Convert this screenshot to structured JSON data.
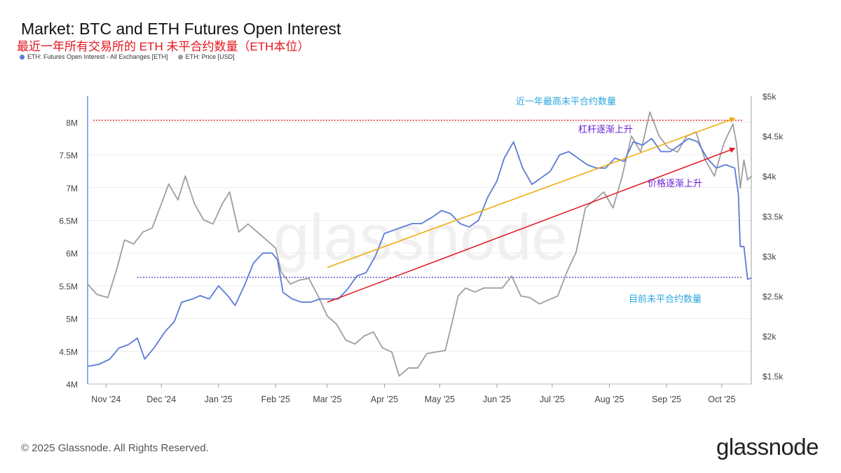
{
  "header": {
    "title": "Market: BTC and ETH Futures Open Interest",
    "subtitle": "最近一年所有交易所的 ETH 未平合约数量（ETH本位）"
  },
  "legend": [
    {
      "label": "ETH: Futures Open Interest - All Exchanges [ETH]",
      "color": "#5b7bd5"
    },
    {
      "label": "ETH: Price [USD]",
      "color": "#9e9e9e"
    }
  ],
  "footer": {
    "copyright": "© 2025 Glassnode. All Rights Reserved.",
    "logo": "glassnode"
  },
  "watermark": "glassnode",
  "chart_data": {
    "type": "line",
    "x_axis": {
      "start": "2024-10-22",
      "end": "2025-10-17",
      "ticks": [
        {
          "date": "2024-11-01",
          "label": "Nov '24"
        },
        {
          "date": "2024-12-01",
          "label": "Dec '24"
        },
        {
          "date": "2025-01-01",
          "label": "Jan '25"
        },
        {
          "date": "2025-02-01",
          "label": "Feb '25"
        },
        {
          "date": "2025-03-01",
          "label": "Mar '25"
        },
        {
          "date": "2025-04-01",
          "label": "Apr '25"
        },
        {
          "date": "2025-05-01",
          "label": "May '25"
        },
        {
          "date": "2025-06-01",
          "label": "Jun '25"
        },
        {
          "date": "2025-07-01",
          "label": "Jul '25"
        },
        {
          "date": "2025-08-01",
          "label": "Aug '25"
        },
        {
          "date": "2025-09-01",
          "label": "Sep '25"
        },
        {
          "date": "2025-10-01",
          "label": "Oct '25"
        }
      ]
    },
    "y_left": {
      "min": 4000000,
      "max": 8400000,
      "ticks": [
        {
          "value": 4000000,
          "label": "4M"
        },
        {
          "value": 4500000,
          "label": "4.5M"
        },
        {
          "value": 5000000,
          "label": "5M"
        },
        {
          "value": 5500000,
          "label": "5.5M"
        },
        {
          "value": 6000000,
          "label": "6M"
        },
        {
          "value": 6500000,
          "label": "6.5M"
        },
        {
          "value": 7000000,
          "label": "7M"
        },
        {
          "value": 7500000,
          "label": "7.5M"
        },
        {
          "value": 8000000,
          "label": "8M"
        }
      ]
    },
    "y_right": {
      "min": 1400,
      "max": 5000,
      "ticks": [
        {
          "value": 1500,
          "label": "$1.5k"
        },
        {
          "value": 2000,
          "label": "$2k"
        },
        {
          "value": 2500,
          "label": "$2.5k"
        },
        {
          "value": 3000,
          "label": "$3k"
        },
        {
          "value": 3500,
          "label": "$3.5k"
        },
        {
          "value": 4000,
          "label": "$4k"
        },
        {
          "value": 4500,
          "label": "$4.5k"
        },
        {
          "value": 5000,
          "label": "$5k"
        }
      ]
    },
    "series": [
      {
        "name": "ETH: Futures Open Interest - All Exchanges [ETH]",
        "axis": "left",
        "color": "#5b7bd5",
        "points": [
          [
            "2024-10-22",
            4270000
          ],
          [
            "2024-10-28",
            4300000
          ],
          [
            "2024-11-03",
            4380000
          ],
          [
            "2024-11-08",
            4550000
          ],
          [
            "2024-11-13",
            4600000
          ],
          [
            "2024-11-18",
            4700000
          ],
          [
            "2024-11-22",
            4380000
          ],
          [
            "2024-11-27",
            4550000
          ],
          [
            "2024-12-03",
            4800000
          ],
          [
            "2024-12-08",
            4950000
          ],
          [
            "2024-12-12",
            5250000
          ],
          [
            "2024-12-18",
            5300000
          ],
          [
            "2024-12-22",
            5350000
          ],
          [
            "2024-12-27",
            5300000
          ],
          [
            "2025-01-01",
            5500000
          ],
          [
            "2025-01-06",
            5350000
          ],
          [
            "2025-01-10",
            5200000
          ],
          [
            "2025-01-15",
            5500000
          ],
          [
            "2025-01-20",
            5850000
          ],
          [
            "2025-01-25",
            6000000
          ],
          [
            "2025-01-30",
            6000000
          ],
          [
            "2025-02-02",
            5900000
          ],
          [
            "2025-02-05",
            5400000
          ],
          [
            "2025-02-10",
            5300000
          ],
          [
            "2025-02-15",
            5250000
          ],
          [
            "2025-02-20",
            5250000
          ],
          [
            "2025-02-25",
            5300000
          ],
          [
            "2025-03-02",
            5300000
          ],
          [
            "2025-03-07",
            5300000
          ],
          [
            "2025-03-12",
            5450000
          ],
          [
            "2025-03-17",
            5650000
          ],
          [
            "2025-03-22",
            5700000
          ],
          [
            "2025-03-27",
            5950000
          ],
          [
            "2025-04-01",
            6300000
          ],
          [
            "2025-04-06",
            6350000
          ],
          [
            "2025-04-11",
            6400000
          ],
          [
            "2025-04-16",
            6450000
          ],
          [
            "2025-04-21",
            6450000
          ],
          [
            "2025-04-27",
            6550000
          ],
          [
            "2025-05-02",
            6650000
          ],
          [
            "2025-05-07",
            6600000
          ],
          [
            "2025-05-12",
            6450000
          ],
          [
            "2025-05-17",
            6400000
          ],
          [
            "2025-05-22",
            6500000
          ],
          [
            "2025-05-27",
            6850000
          ],
          [
            "2025-06-01",
            7100000
          ],
          [
            "2025-06-05",
            7450000
          ],
          [
            "2025-06-10",
            7700000
          ],
          [
            "2025-06-15",
            7300000
          ],
          [
            "2025-06-20",
            7050000
          ],
          [
            "2025-06-25",
            7150000
          ],
          [
            "2025-06-30",
            7250000
          ],
          [
            "2025-07-05",
            7500000
          ],
          [
            "2025-07-10",
            7550000
          ],
          [
            "2025-07-15",
            7450000
          ],
          [
            "2025-07-20",
            7350000
          ],
          [
            "2025-07-25",
            7300000
          ],
          [
            "2025-07-30",
            7300000
          ],
          [
            "2025-08-04",
            7450000
          ],
          [
            "2025-08-09",
            7400000
          ],
          [
            "2025-08-14",
            7700000
          ],
          [
            "2025-08-19",
            7650000
          ],
          [
            "2025-08-24",
            7750000
          ],
          [
            "2025-08-29",
            7550000
          ],
          [
            "2025-09-03",
            7550000
          ],
          [
            "2025-09-08",
            7650000
          ],
          [
            "2025-09-13",
            7750000
          ],
          [
            "2025-09-18",
            7700000
          ],
          [
            "2025-09-23",
            7450000
          ],
          [
            "2025-09-28",
            7300000
          ],
          [
            "2025-10-03",
            7350000
          ],
          [
            "2025-10-08",
            7300000
          ],
          [
            "2025-10-10",
            6900000
          ],
          [
            "2025-10-11",
            6100000
          ],
          [
            "2025-10-13",
            6100000
          ],
          [
            "2025-10-15",
            5600000
          ],
          [
            "2025-10-17",
            5620000
          ]
        ]
      },
      {
        "name": "ETH: Price [USD]",
        "axis": "right",
        "color": "#9e9e9e",
        "points": [
          [
            "2024-10-22",
            2650
          ],
          [
            "2024-10-27",
            2520
          ],
          [
            "2024-11-02",
            2480
          ],
          [
            "2024-11-07",
            2850
          ],
          [
            "2024-11-11",
            3200
          ],
          [
            "2024-11-16",
            3150
          ],
          [
            "2024-11-21",
            3300
          ],
          [
            "2024-11-26",
            3350
          ],
          [
            "2024-12-01",
            3650
          ],
          [
            "2024-12-05",
            3900
          ],
          [
            "2024-12-10",
            3700
          ],
          [
            "2024-12-14",
            4000
          ],
          [
            "2024-12-19",
            3650
          ],
          [
            "2024-12-24",
            3450
          ],
          [
            "2024-12-29",
            3400
          ],
          [
            "2025-01-03",
            3650
          ],
          [
            "2025-01-07",
            3800
          ],
          [
            "2025-01-12",
            3300
          ],
          [
            "2025-01-17",
            3400
          ],
          [
            "2025-01-22",
            3300
          ],
          [
            "2025-01-27",
            3200
          ],
          [
            "2025-02-01",
            3100
          ],
          [
            "2025-02-04",
            2800
          ],
          [
            "2025-02-09",
            2650
          ],
          [
            "2025-02-14",
            2700
          ],
          [
            "2025-02-19",
            2720
          ],
          [
            "2025-02-24",
            2500
          ],
          [
            "2025-03-01",
            2250
          ],
          [
            "2025-03-06",
            2150
          ],
          [
            "2025-03-11",
            1950
          ],
          [
            "2025-03-16",
            1900
          ],
          [
            "2025-03-21",
            2000
          ],
          [
            "2025-03-26",
            2050
          ],
          [
            "2025-03-31",
            1850
          ],
          [
            "2025-04-05",
            1800
          ],
          [
            "2025-04-09",
            1500
          ],
          [
            "2025-04-14",
            1600
          ],
          [
            "2025-04-19",
            1600
          ],
          [
            "2025-04-24",
            1780
          ],
          [
            "2025-04-29",
            1800
          ],
          [
            "2025-05-04",
            1820
          ],
          [
            "2025-05-08",
            2200
          ],
          [
            "2025-05-11",
            2500
          ],
          [
            "2025-05-15",
            2600
          ],
          [
            "2025-05-20",
            2550
          ],
          [
            "2025-05-25",
            2600
          ],
          [
            "2025-05-30",
            2600
          ],
          [
            "2025-06-04",
            2600
          ],
          [
            "2025-06-09",
            2750
          ],
          [
            "2025-06-14",
            2500
          ],
          [
            "2025-06-19",
            2480
          ],
          [
            "2025-06-24",
            2400
          ],
          [
            "2025-06-29",
            2450
          ],
          [
            "2025-07-04",
            2500
          ],
          [
            "2025-07-09",
            2800
          ],
          [
            "2025-07-14",
            3050
          ],
          [
            "2025-07-19",
            3600
          ],
          [
            "2025-07-24",
            3700
          ],
          [
            "2025-07-29",
            3800
          ],
          [
            "2025-08-03",
            3600
          ],
          [
            "2025-08-08",
            4000
          ],
          [
            "2025-08-13",
            4500
          ],
          [
            "2025-08-18",
            4300
          ],
          [
            "2025-08-23",
            4800
          ],
          [
            "2025-08-28",
            4500
          ],
          [
            "2025-09-02",
            4350
          ],
          [
            "2025-09-07",
            4300
          ],
          [
            "2025-09-12",
            4500
          ],
          [
            "2025-09-17",
            4550
          ],
          [
            "2025-09-22",
            4200
          ],
          [
            "2025-09-27",
            4000
          ],
          [
            "2025-10-02",
            4400
          ],
          [
            "2025-10-07",
            4650
          ],
          [
            "2025-10-09",
            4400
          ],
          [
            "2025-10-11",
            3850
          ],
          [
            "2025-10-13",
            4200
          ],
          [
            "2025-10-15",
            3950
          ],
          [
            "2025-10-17",
            4000
          ]
        ]
      }
    ],
    "annotations": [
      {
        "text": "近一年最高未平合约数量",
        "color": "#2aa7df"
      },
      {
        "text": "杠杆逐渐上升",
        "color": "#6a1fd6"
      },
      {
        "text": "价格逐渐上升",
        "color": "#6a1fd6"
      },
      {
        "text": "目前未平合约数量",
        "color": "#2aa7df"
      }
    ],
    "reference_lines": [
      {
        "axis": "left",
        "value": 8030000,
        "color": "#e3151f",
        "style": "dotted"
      },
      {
        "axis": "left",
        "value": 5630000,
        "color": "#4a3bb5",
        "style": "dotted"
      }
    ],
    "trend_arrows": [
      {
        "axis": "left",
        "from": [
          "2025-03-01",
          5780000
        ],
        "to": [
          "2025-10-08",
          8060000
        ],
        "color": "#f0a800"
      },
      {
        "axis": "left",
        "from": [
          "2025-03-01",
          5250000
        ],
        "to": [
          "2025-10-08",
          7600000
        ],
        "color": "#e3151f"
      }
    ],
    "grid": true,
    "legend_position": "top-left"
  }
}
